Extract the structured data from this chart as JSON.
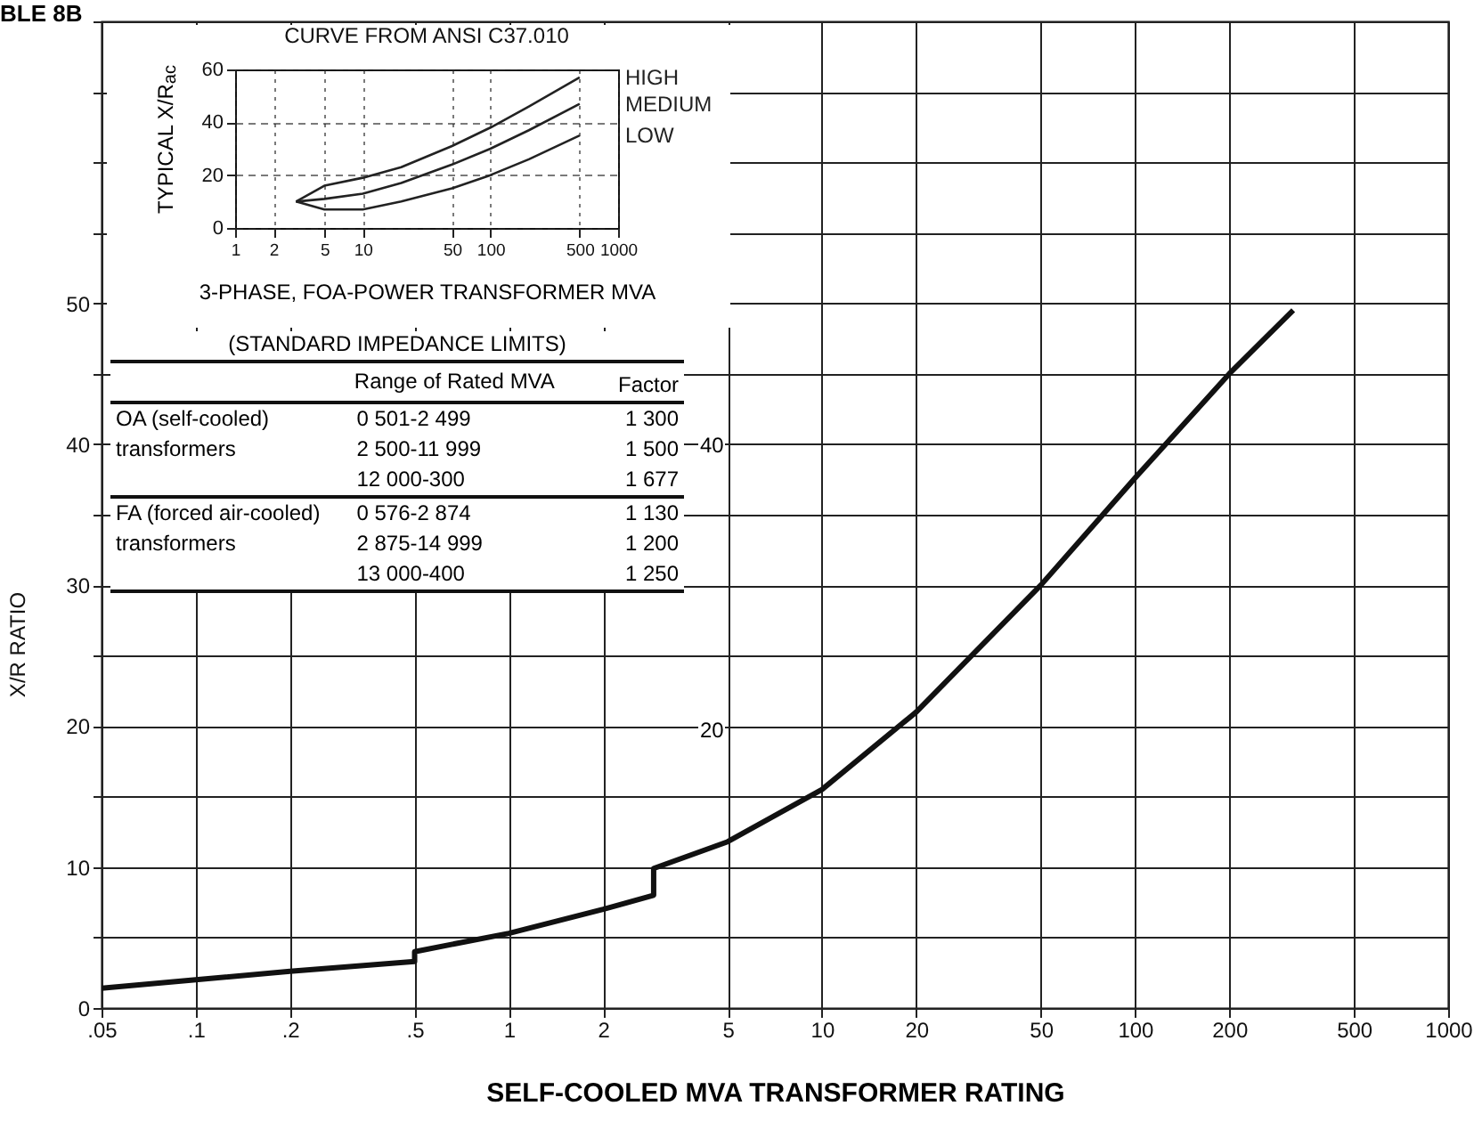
{
  "chart_data": [
    {
      "type": "line",
      "xlabel": "SELF-COOLED MVA TRANSFORMER RATING",
      "ylabel": "X/R RATIO",
      "x": [
        0.05,
        0.1,
        0.2,
        0.5,
        0.5,
        1,
        2,
        2.9,
        2.9,
        5,
        10,
        20,
        50,
        100,
        200,
        320
      ],
      "values": [
        1.4,
        2.0,
        2.6,
        3.3,
        4.0,
        5.3,
        7.0,
        8.0,
        9.9,
        11.8,
        15.5,
        21,
        30,
        37.6,
        45,
        49.5
      ],
      "color": "#111111",
      "log": "x",
      "xlim": [
        0.05,
        1000
      ],
      "xticks": [
        {
          "value": 0.05,
          "label": ".05"
        },
        {
          "value": 0.1,
          "label": ".1"
        },
        {
          "value": 0.2,
          "label": ".2"
        },
        {
          "value": 0.5,
          "label": ".5"
        },
        1,
        2,
        5,
        10,
        20,
        50,
        100,
        200,
        500,
        1000
      ],
      "ylim": [
        0,
        70
      ],
      "yticks": [
        0,
        {
          "value": 5,
          "label": null
        },
        10,
        {
          "value": 15,
          "label": null
        },
        20,
        {
          "value": 25,
          "label": null
        },
        30,
        {
          "value": 35,
          "label": null
        },
        40,
        {
          "value": 45,
          "label": null
        },
        50,
        {
          "value": 55,
          "label": null
        },
        {
          "value": 60,
          "label": null
        },
        {
          "value": 65,
          "label": null
        },
        {
          "value": 70,
          "label": null
        }
      ],
      "grid": true,
      "annotations": [
        "BLE 8B",
        "20",
        "40",
        "(STANDARD IMPEDANCE LIMITS)",
        "Range of Rated MVA",
        "Factor",
        "OA (self-cooled) transformers",
        "0 501-2 499",
        "1 300",
        "2 500-11 999",
        "1 500",
        "12 000-300",
        "1 677",
        "FA (forced air-cooled) transformers",
        "0 576-2 874",
        "1 130",
        "2 875-14 999",
        "1 200",
        "13 000-400",
        "1 250"
      ]
    },
    {
      "type": "line",
      "title": "CURVE FROM ANSI C37.010",
      "xlabel": "3-PHASE, FOA-POWER TRANSFORMER MVA",
      "ylabel": "TYPICAL X/R$_{ac}$",
      "x": [
        3,
        5,
        10,
        20,
        50,
        100,
        200,
        500
      ],
      "series": [
        {
          "name": "HIGH",
          "color": "#222222",
          "values": [
            10,
            16,
            19,
            23,
            31,
            38,
            46,
            57
          ]
        },
        {
          "name": "MEDIUM",
          "color": "#222222",
          "values": [
            10,
            11,
            13,
            17,
            24,
            30,
            37,
            47
          ]
        },
        {
          "name": "LOW",
          "color": "#222222",
          "values": [
            10,
            7,
            7,
            10,
            15,
            20,
            26,
            35
          ]
        }
      ],
      "log": "x",
      "xlim": [
        1,
        1000
      ],
      "xticks": [
        1,
        2,
        5,
        10,
        50,
        100,
        500,
        1000
      ],
      "ylim": [
        0,
        60
      ],
      "yticks": [
        0,
        20,
        40,
        60
      ],
      "grid": true
    }
  ]
}
